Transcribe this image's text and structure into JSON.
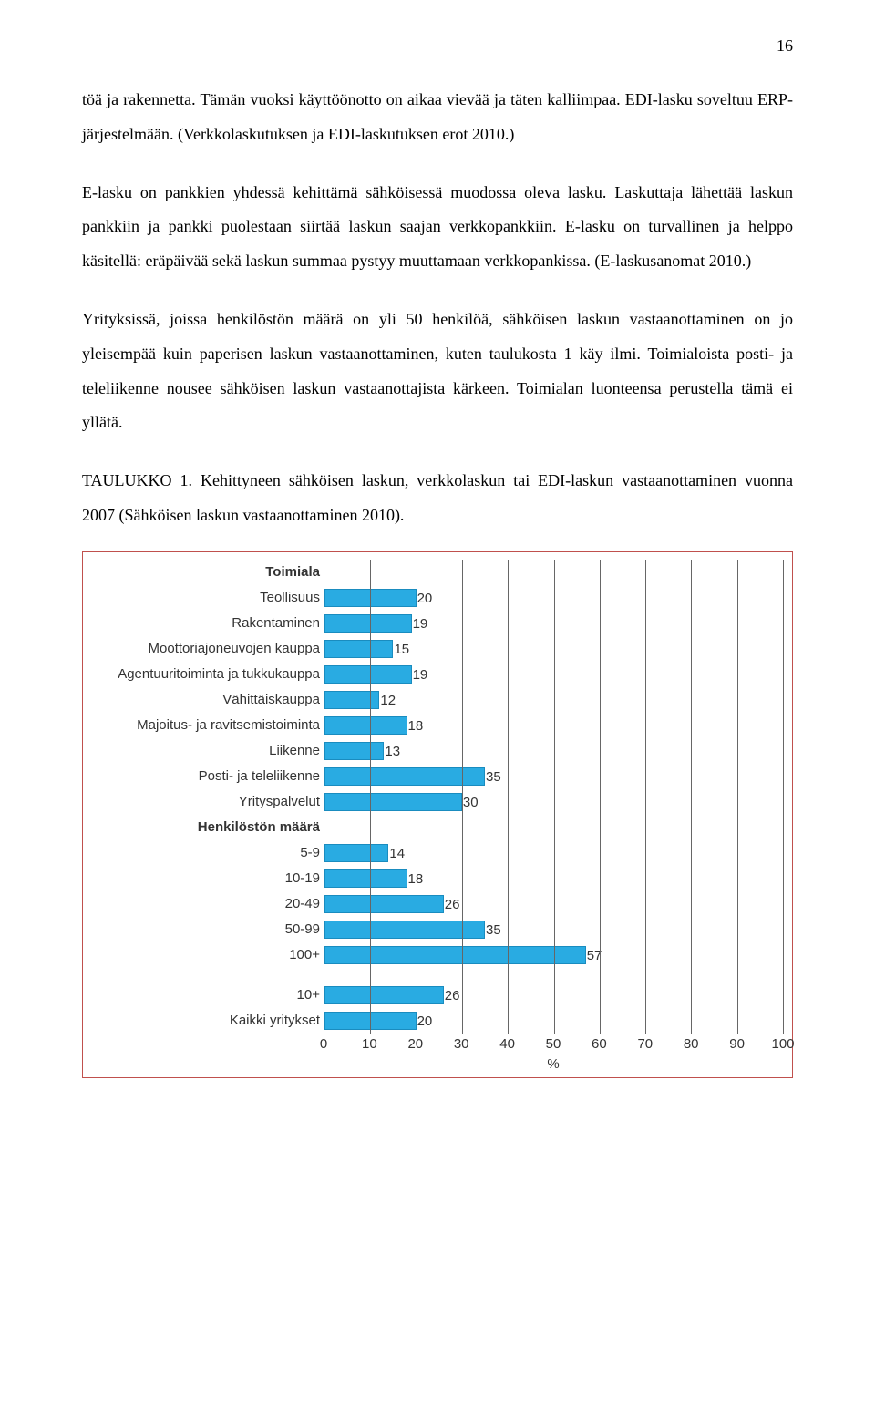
{
  "page_number": "16",
  "paragraphs": {
    "p1": "töä ja rakennetta. Tämän vuoksi käyttöönotto on aikaa vievää ja täten kalliimpaa. EDI-lasku soveltuu ERP-järjestelmään. (Verkkolaskutuksen ja EDI-laskutuksen erot 2010.)",
    "p2": "E-lasku on pankkien yhdessä kehittämä sähköisessä muodossa oleva lasku. Laskuttaja lähettää laskun pankkiin ja pankki puolestaan siirtää laskun saajan verkkopankkiin. E-lasku on turvallinen ja helppo käsitellä: eräpäivää sekä laskun summaa pystyy muuttamaan verkkopankissa. (E-laskusanomat 2010.)",
    "p3": "Yrityksissä, joissa henkilöstön määrä on yli 50 henkilöä, sähköisen laskun vastaanottaminen on jo yleisempää kuin paperisen laskun vastaanottaminen, kuten taulukosta 1 käy ilmi. Toimialoista posti- ja teleliikenne nousee sähköisen laskun vastaanottajista kärkeen. Toimialan luonteensa perustella tämä ei yllätä.",
    "caption": "TAULUKKO 1. Kehittyneen sähköisen laskun, verkkolaskun tai EDI-laskun vastaanottaminen vuonna 2007 (Sähköisen laskun vastaanottaminen 2010)."
  },
  "chart": {
    "type": "bar",
    "xmax": 100,
    "xtick_step": 10,
    "xlabel": "%",
    "bar_color": "#29abe2",
    "bar_border": "#1a8cbf",
    "grid_color": "#666666",
    "frame_border_color": "#c0504d",
    "sections": [
      {
        "header": "Toimiala",
        "rows": [
          {
            "label": "Teollisuus",
            "value": 20
          },
          {
            "label": "Rakentaminen",
            "value": 19
          },
          {
            "label": "Moottoriajoneuvojen kauppa",
            "value": 15
          },
          {
            "label": "Agentuuritoiminta ja tukkukauppa",
            "value": 19
          },
          {
            "label": "Vähittäiskauppa",
            "value": 12
          },
          {
            "label": "Majoitus- ja ravitsemistoiminta",
            "value": 18
          },
          {
            "label": "Liikenne",
            "value": 13
          },
          {
            "label": "Posti- ja teleliikenne",
            "value": 35
          },
          {
            "label": "Yrityspalvelut",
            "value": 30
          }
        ]
      },
      {
        "header": "Henkilöstön määrä",
        "rows": [
          {
            "label": "5-9",
            "value": 14
          },
          {
            "label": "10-19",
            "value": 18
          },
          {
            "label": "20-49",
            "value": 26
          },
          {
            "label": "50-99",
            "value": 35
          },
          {
            "label": "100+",
            "value": 57
          }
        ]
      },
      {
        "header": "",
        "rows": [
          {
            "label": "10+",
            "value": 26
          },
          {
            "label": "Kaikki yritykset",
            "value": 20
          }
        ]
      }
    ],
    "xticks": [
      "0",
      "10",
      "20",
      "30",
      "40",
      "50",
      "60",
      "70",
      "80",
      "90",
      "100"
    ]
  }
}
